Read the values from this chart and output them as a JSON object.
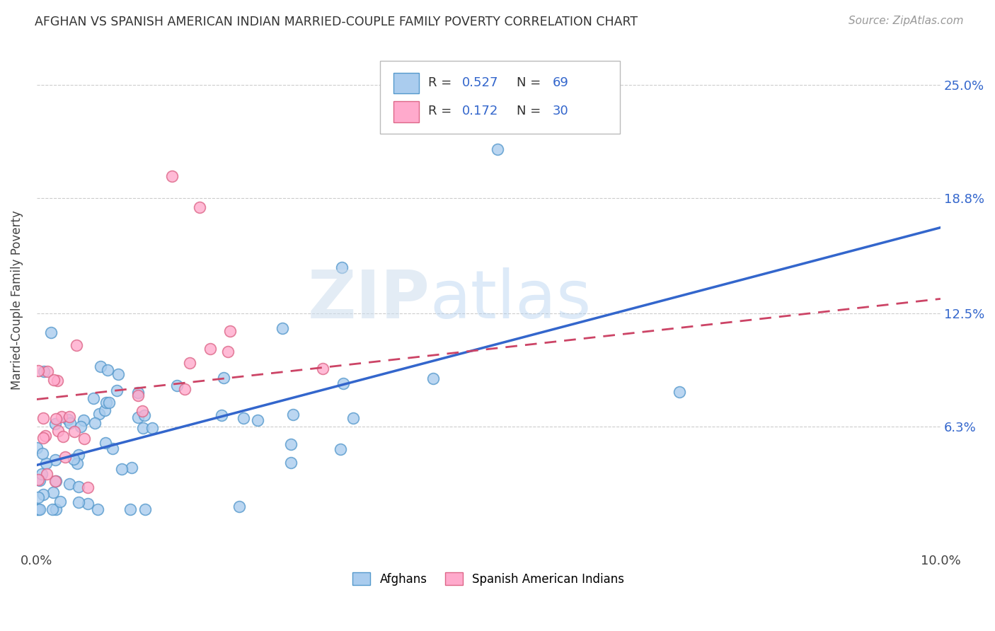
{
  "title": "AFGHAN VS SPANISH AMERICAN INDIAN MARRIED-COUPLE FAMILY POVERTY CORRELATION CHART",
  "source": "Source: ZipAtlas.com",
  "ylabel": "Married-Couple Family Poverty",
  "xlim": [
    0.0,
    0.1
  ],
  "ylim": [
    -0.005,
    0.27
  ],
  "xtick_positions": [
    0.0,
    0.02,
    0.04,
    0.06,
    0.08,
    0.1
  ],
  "xticklabels": [
    "0.0%",
    "",
    "",
    "",
    "",
    "10.0%"
  ],
  "ytick_positions": [
    0.063,
    0.125,
    0.188,
    0.25
  ],
  "ytick_labels": [
    "6.3%",
    "12.5%",
    "18.8%",
    "25.0%"
  ],
  "afghan_color": "#aaccee",
  "afghan_edge": "#5599cc",
  "spanish_color": "#ffaacc",
  "spanish_edge": "#dd6688",
  "line_afghan_color": "#3366cc",
  "line_spanish_color": "#cc4466",
  "R_afghan": 0.527,
  "N_afghan": 69,
  "R_spanish": 0.172,
  "N_spanish": 30,
  "legend_afghan": "Afghans",
  "legend_spanish": "Spanish American Indians",
  "afghan_line_x0": 0.0,
  "afghan_line_y0": 0.042,
  "afghan_line_x1": 0.1,
  "afghan_line_y1": 0.172,
  "spanish_line_x0": 0.0,
  "spanish_line_y0": 0.078,
  "spanish_line_x1": 0.1,
  "spanish_line_y1": 0.133
}
